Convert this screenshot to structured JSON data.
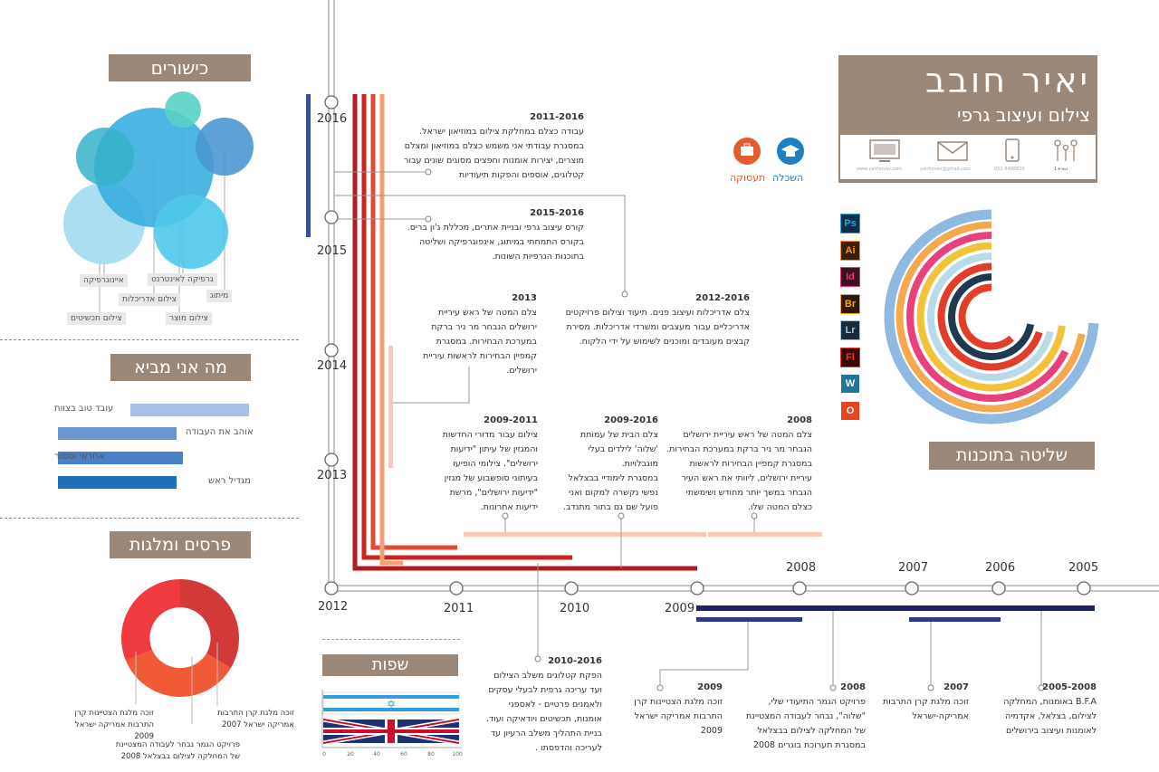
{
  "header": {
    "name": "יאיר חובב",
    "role": "צילום ועיצוב גרפי",
    "contact": [
      {
        "icon": "web-icon",
        "text": "www.yairhovav.com"
      },
      {
        "icon": "mail-icon",
        "text": "yairhovav@gmail.com"
      },
      {
        "icon": "phone-icon",
        "text": "052-8488820"
      },
      {
        "icon": "family-icon",
        "text": "נשוי+1"
      }
    ]
  },
  "legend": {
    "education": "השכלה",
    "work": "תעסוקה",
    "education_color": "#1f7fc4",
    "work_color": "#e45b2e"
  },
  "software": {
    "title": "שליטה בתוכנות",
    "icons": [
      {
        "name": "photoshop-icon",
        "text": "Ps",
        "color": "#2fa0d8",
        "bg": "#0c2f48"
      },
      {
        "name": "illustrator-icon",
        "text": "Ai",
        "color": "#f7941d",
        "bg": "#3b1e07"
      },
      {
        "name": "indesign-icon",
        "text": "Id",
        "color": "#e53575",
        "bg": "#3e1024"
      },
      {
        "name": "bridge-icon",
        "text": "Br",
        "color": "#f5a623",
        "bg": "#2a1a05"
      },
      {
        "name": "lightroom-icon",
        "text": "Lr",
        "color": "#9fc8e6",
        "bg": "#1b2a38"
      },
      {
        "name": "flash-icon",
        "text": "Fl",
        "color": "#e23d28",
        "bg": "#3a0a05"
      },
      {
        "name": "wordpress-icon",
        "text": "W",
        "color": "#fff",
        "bg": "#21759b"
      },
      {
        "name": "office-icon",
        "text": "O",
        "color": "#fff",
        "bg": "#e8451f"
      }
    ],
    "rings": [
      {
        "color": "#8fb9e0",
        "level": 0.74
      },
      {
        "color": "#f5a94f",
        "level": 0.72
      },
      {
        "color": "#e7407c",
        "level": 0.68
      },
      {
        "color": "#f3c23b",
        "level": 0.73
      },
      {
        "color": "#b9dbe9",
        "level": 0.71
      },
      {
        "color": "#e23d28",
        "level": 0.7
      },
      {
        "color": "#1f3a4f",
        "level": 0.72
      },
      {
        "color": "#e23d28",
        "level": 0.62
      }
    ]
  },
  "talents": {
    "title": "כישורים",
    "labels": [
      "איינוגרפיקה",
      "צילום תכשיטים",
      "צילום אדריכלות",
      "גרפיקה לאינטרנט",
      "צילום מוצר",
      "מיתוג"
    ]
  },
  "brings": {
    "title": "מה אני מביא",
    "items": [
      {
        "label": "עובד טוב בצוות",
        "level": 0.62,
        "color": "#a9c1e6"
      },
      {
        "label": "אוהב את העבודה",
        "level": 0.62,
        "color": "#6c95d4"
      },
      {
        "label": "אחראי ומסור",
        "level": 0.67,
        "color": "#4a80c8"
      },
      {
        "label": "מגדיל ראש",
        "level": 0.62,
        "color": "#1d6fb8"
      }
    ]
  },
  "awards": {
    "title": "פרסים ומלגות",
    "items": [
      {
        "text": "זוכה מלגת קרן התרבות אמריקה ישראל 2007"
      },
      {
        "text": "זוכה מלגת הצטיינות קרן התרבות אמריקה ישראל 2009"
      },
      {
        "text": "פרויקט הגמר נבחר לעבודה המצטיינת של המחלקה לצילום בבצלאל 2008"
      }
    ]
  },
  "languages": {
    "title": "שפות",
    "scale": [
      "0",
      "20",
      "40",
      "60",
      "80",
      "100"
    ],
    "items": [
      {
        "name": "hebrew",
        "level": 1.0
      },
      {
        "name": "english",
        "level": 1.0
      }
    ]
  },
  "timeline": {
    "years_vertical": [
      "2016",
      "2015",
      "2014",
      "2013",
      "2012"
    ],
    "years_horizontal": [
      "2011",
      "2010",
      "2009",
      "2008",
      "2007",
      "2006",
      "2005"
    ],
    "entries": {
      "e2011_2016": {
        "title": "2011-2016",
        "lines": [
          "עבודה כצלם במחלקת צילום במוזיאון ישראל.",
          "במסגרת עבודתי אני משמש כצלם במוזיאון ומצלם",
          "מוצרים, יצירות אומנות וחפצים מסוגים שונים עבור",
          "קטלוגים, אוספים והפקות תיעודיות"
        ]
      },
      "e2015_2016": {
        "title": "2015-2016",
        "lines": [
          "קורס עיצוב גרפי ובניית אתרים, מכללת ג'ון בריס.",
          "בקורס התמחתי במיתוג, אינפוגרפיקה ושליטה",
          "בתוכנות הגרפיות השונות."
        ]
      },
      "e2012_2016": {
        "title": "2012-2016",
        "lines": [
          "צלם אדריכלות ועיצוב פנים. תיעוד וצילום פרויקטים",
          "אדריכליים עבור מעצבים ומשרדי אדריכלות. מסירת",
          "קבצים מעובדים ומוכנים לשימוש על ידי הלקוח."
        ]
      },
      "e2013": {
        "title": "2013",
        "lines": [
          "צלם המטה של ראש עיריית",
          "ירושלים הנבחר מר ניר ברקת",
          "במערכת הבחירות. במסגרת",
          "קמפיין הבחירות לראשות עיריית",
          "ירושלים."
        ]
      },
      "e2009_2011": {
        "title": "2009-2011",
        "lines": [
          "צילום עבור מדורי החדשות",
          "והמגזין של עיתון \"ידיעות",
          "ירושלים\". צילומי הופיעו",
          "בעיתוני סופשבוע של מגזין",
          "\"ידיעות ירושלים\", מרשת",
          "ידיעות אחרונות."
        ]
      },
      "e2009_2016": {
        "title": "2009-2016",
        "lines": [
          "צלם הבית של עמותת",
          "'שלוה' לילדים בעלי",
          "מוגבלויות.",
          "במסגרת לימודיי בבצלאל",
          "נפשי נקשרה למקום ואני",
          "פועל שם גם בתור מתנדב."
        ]
      },
      "e2008": {
        "title": "2008",
        "lines": [
          "צלם המטה של ראש עיריית ירושלים",
          "הנבחר מר ניר ברקת במערכת הבחירות.",
          "במסגרת קמפיין הבחירות לראשות",
          "עיריית ירושלים, ליוותי את ראש העיר",
          "הנבחר במשך יותר מחודש ושימשתי",
          "כצלם המטה שלו."
        ]
      },
      "e2010_2016": {
        "title": "2010-2016",
        "lines": [
          "הפקת קטלוגים משלב הצילום",
          "ועד עריכה גרפית לבעלי עסקים",
          "ולאמנים פרטיים - לאספני",
          "אומנות, תכשיטים ויודאיקה ועוד.",
          "בניית התהליך משלב הרעיון עד",
          "לעריכה והדפסתו ."
        ]
      },
      "b2009": {
        "title": "2009",
        "lines": [
          "זוכה מלגת הצטיינות קרן",
          "התרבות אמריקה ישראל",
          "2009"
        ]
      },
      "b2008": {
        "title": "2008",
        "lines": [
          "פרויקט הגמר התיעודי שלי,",
          "\"שלוה\", נבחר לעבודה המצטיינת",
          "של המחלקה  לצילום בבצלאל",
          "במסגרת תערוכת בוגרים 2008"
        ]
      },
      "b2007": {
        "title": "2007",
        "lines": [
          "זוכה מלגת קרן התרבות",
          "אמריקה-ישראל"
        ]
      },
      "b2005": {
        "title": "2005-2008",
        "lines": [
          "B.F.A באומנות, המחלקה",
          "לצילום, בצלאל, אקדמיה",
          "לאומנות ועיצוב בירושלים"
        ]
      }
    }
  }
}
